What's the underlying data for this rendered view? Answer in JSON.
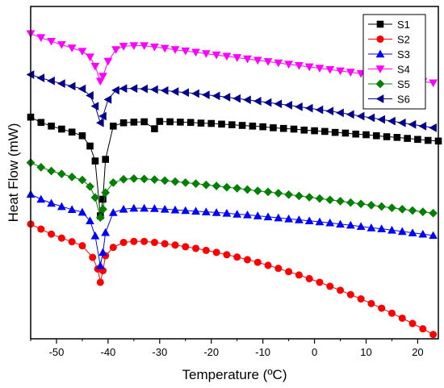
{
  "chart_data": {
    "type": "line",
    "xlabel": "Temperature (ºC)",
    "ylabel": "Heat Flow (mW)",
    "xlim": [
      -55,
      24
    ],
    "ylim": [
      0,
      100
    ],
    "x_ticks": [
      "-50",
      "-40",
      "-30",
      "-20",
      "-10",
      "0",
      "10",
      "20"
    ],
    "y_ticks_labeled": false,
    "grid": false,
    "legend_position": "top-right",
    "series": [
      {
        "name": "S1",
        "color": "#000000",
        "marker": "square",
        "points": [
          [
            -55,
            66.7
          ],
          [
            -53,
            65.1
          ],
          [
            -51,
            64.0
          ],
          [
            -49,
            63.1
          ],
          [
            -47,
            62.2
          ],
          [
            -45,
            61.1
          ],
          [
            -43.5,
            58.0
          ],
          [
            -42.5,
            53.5
          ],
          [
            -41.5,
            37.0
          ],
          [
            -41,
            42.0
          ],
          [
            -40.5,
            54.0
          ],
          [
            -39,
            64.0
          ],
          [
            -37,
            65.0
          ],
          [
            -35,
            65.2
          ],
          [
            -33,
            65.3
          ],
          [
            -31,
            63.2
          ],
          [
            -30,
            65.4
          ],
          [
            -28,
            65.3
          ],
          [
            -26,
            65.2
          ],
          [
            -24,
            65.1
          ],
          [
            -22,
            64.9
          ],
          [
            -20,
            64.8
          ],
          [
            -18,
            64.6
          ],
          [
            -16,
            64.4
          ],
          [
            -14,
            64.2
          ],
          [
            -12,
            64.0
          ],
          [
            -10,
            63.8
          ],
          [
            -8,
            63.5
          ],
          [
            -6,
            63.3
          ],
          [
            -4,
            63.1
          ],
          [
            -2,
            62.8
          ],
          [
            0,
            62.6
          ],
          [
            2,
            62.4
          ],
          [
            4,
            62.1
          ],
          [
            6,
            61.9
          ],
          [
            8,
            61.6
          ],
          [
            10,
            61.4
          ],
          [
            12,
            61.1
          ],
          [
            14,
            60.8
          ],
          [
            16,
            60.6
          ],
          [
            18,
            60.3
          ],
          [
            20,
            60.0
          ],
          [
            22,
            59.7
          ],
          [
            24,
            59.5
          ]
        ]
      },
      {
        "name": "S2",
        "color": "#ff0000",
        "marker": "circle",
        "points": [
          [
            -55,
            34.5
          ],
          [
            -53,
            33.0
          ],
          [
            -51,
            31.5
          ],
          [
            -49,
            30.3
          ],
          [
            -47,
            29.2
          ],
          [
            -45,
            28.0
          ],
          [
            -43,
            24.5
          ],
          [
            -42,
            21.0
          ],
          [
            -41.5,
            17.0
          ],
          [
            -41,
            20.5
          ],
          [
            -40.5,
            25.0
          ],
          [
            -39,
            27.5
          ],
          [
            -37,
            29.0
          ],
          [
            -35,
            29.3
          ],
          [
            -33,
            29.3
          ],
          [
            -31,
            29.0
          ],
          [
            -29,
            28.6
          ],
          [
            -27,
            28.2
          ],
          [
            -25,
            27.7
          ],
          [
            -23,
            27.2
          ],
          [
            -21,
            26.6
          ],
          [
            -19,
            26.0
          ],
          [
            -17,
            25.3
          ],
          [
            -15,
            24.6
          ],
          [
            -13,
            23.8
          ],
          [
            -11,
            23.0
          ],
          [
            -9,
            22.1
          ],
          [
            -7,
            21.2
          ],
          [
            -5,
            20.2
          ],
          [
            -3,
            19.2
          ],
          [
            -1,
            18.1
          ],
          [
            1,
            17.0
          ],
          [
            3,
            15.8
          ],
          [
            5,
            14.6
          ],
          [
            7,
            13.3
          ],
          [
            9,
            12.0
          ],
          [
            11,
            10.6
          ],
          [
            13,
            9.2
          ],
          [
            15,
            7.7
          ],
          [
            17,
            6.2
          ],
          [
            19,
            4.6
          ],
          [
            21,
            3.0
          ],
          [
            23,
            1.3
          ]
        ]
      },
      {
        "name": "S3",
        "color": "#0000ff",
        "marker": "triangle-up",
        "points": [
          [
            -55,
            43.5
          ],
          [
            -53,
            42.0
          ],
          [
            -51,
            40.8
          ],
          [
            -49,
            39.8
          ],
          [
            -47,
            38.9
          ],
          [
            -45,
            38.1
          ],
          [
            -43.5,
            35.5
          ],
          [
            -42.5,
            31.0
          ],
          [
            -41.5,
            22.0
          ],
          [
            -41,
            26.0
          ],
          [
            -40.5,
            32.0
          ],
          [
            -39,
            38.0
          ],
          [
            -37,
            39.0
          ],
          [
            -35,
            39.3
          ],
          [
            -33,
            39.3
          ],
          [
            -31,
            39.2
          ],
          [
            -29,
            39.0
          ],
          [
            -27,
            38.8
          ],
          [
            -25,
            38.6
          ],
          [
            -23,
            38.4
          ],
          [
            -21,
            38.2
          ],
          [
            -19,
            38.0
          ],
          [
            -17,
            37.8
          ],
          [
            -15,
            37.5
          ],
          [
            -13,
            37.3
          ],
          [
            -11,
            37.0
          ],
          [
            -9,
            36.7
          ],
          [
            -7,
            36.4
          ],
          [
            -5,
            36.1
          ],
          [
            -3,
            35.8
          ],
          [
            -1,
            35.5
          ],
          [
            1,
            35.2
          ],
          [
            3,
            34.9
          ],
          [
            5,
            34.5
          ],
          [
            7,
            34.2
          ],
          [
            9,
            33.8
          ],
          [
            11,
            33.4
          ],
          [
            13,
            33.1
          ],
          [
            15,
            32.7
          ],
          [
            17,
            32.3
          ],
          [
            19,
            31.9
          ],
          [
            21,
            31.5
          ],
          [
            23,
            31.1
          ]
        ]
      },
      {
        "name": "S4",
        "color": "#ff00ff",
        "marker": "triangle-down",
        "points": [
          [
            -55,
            91.8
          ],
          [
            -53,
            90.6
          ],
          [
            -51,
            89.5
          ],
          [
            -49,
            88.5
          ],
          [
            -47,
            87.5
          ],
          [
            -45,
            86.5
          ],
          [
            -43.5,
            84.8
          ],
          [
            -42.5,
            82.0
          ],
          [
            -41.5,
            77.5
          ],
          [
            -41,
            79.0
          ],
          [
            -40,
            83.5
          ],
          [
            -38.5,
            87.0
          ],
          [
            -37,
            88.0
          ],
          [
            -35,
            88.2
          ],
          [
            -33,
            88.2
          ],
          [
            -31,
            87.8
          ],
          [
            -29,
            87.4
          ],
          [
            -27,
            87.0
          ],
          [
            -25,
            86.6
          ],
          [
            -23,
            86.2
          ],
          [
            -21,
            85.8
          ],
          [
            -19,
            85.4
          ],
          [
            -17,
            85.0
          ],
          [
            -15,
            84.6
          ],
          [
            -13,
            84.2
          ],
          [
            -11,
            83.8
          ],
          [
            -9,
            83.4
          ],
          [
            -7,
            83.0
          ],
          [
            -5,
            82.6
          ],
          [
            -3,
            82.2
          ],
          [
            -1,
            81.8
          ],
          [
            1,
            81.4
          ],
          [
            3,
            81.0
          ],
          [
            5,
            80.6
          ],
          [
            7,
            80.2
          ],
          [
            9,
            79.8
          ],
          [
            11,
            79.4
          ],
          [
            13,
            79.0
          ],
          [
            15,
            78.6
          ],
          [
            17,
            78.2
          ],
          [
            19,
            77.8
          ],
          [
            21,
            77.4
          ],
          [
            23,
            77.0
          ]
        ]
      },
      {
        "name": "S5",
        "color": "#008000",
        "marker": "diamond",
        "points": [
          [
            -55,
            53.0
          ],
          [
            -53,
            51.6
          ],
          [
            -51,
            50.5
          ],
          [
            -49,
            49.6
          ],
          [
            -47,
            48.7
          ],
          [
            -45,
            47.8
          ],
          [
            -43.5,
            45.8
          ],
          [
            -42.5,
            42.5
          ],
          [
            -41.5,
            36.5
          ],
          [
            -41,
            39.0
          ],
          [
            -40.5,
            44.0
          ],
          [
            -39,
            47.0
          ],
          [
            -37,
            48.0
          ],
          [
            -35,
            48.2
          ],
          [
            -33,
            48.1
          ],
          [
            -31,
            47.9
          ],
          [
            -29,
            47.6
          ],
          [
            -27,
            47.3
          ],
          [
            -25,
            47.0
          ],
          [
            -23,
            46.7
          ],
          [
            -21,
            46.3
          ],
          [
            -19,
            46.0
          ],
          [
            -17,
            45.6
          ],
          [
            -15,
            45.3
          ],
          [
            -13,
            44.9
          ],
          [
            -11,
            44.5
          ],
          [
            -9,
            44.2
          ],
          [
            -7,
            43.8
          ],
          [
            -5,
            43.4
          ],
          [
            -3,
            43.0
          ],
          [
            -1,
            42.6
          ],
          [
            1,
            42.2
          ],
          [
            3,
            41.8
          ],
          [
            5,
            41.4
          ],
          [
            7,
            41.0
          ],
          [
            9,
            40.6
          ],
          [
            11,
            40.2
          ],
          [
            13,
            39.8
          ],
          [
            15,
            39.4
          ],
          [
            17,
            39.0
          ],
          [
            19,
            38.6
          ],
          [
            21,
            38.2
          ],
          [
            23,
            37.8
          ]
        ]
      },
      {
        "name": "S6",
        "color": "#00008b",
        "marker": "triangle-left",
        "points": [
          [
            -55,
            79.5
          ],
          [
            -53,
            78.5
          ],
          [
            -51,
            77.6
          ],
          [
            -49,
            76.8
          ],
          [
            -47,
            76.0
          ],
          [
            -45,
            75.2
          ],
          [
            -43.5,
            73.2
          ],
          [
            -42.5,
            70.0
          ],
          [
            -41.5,
            65.0
          ],
          [
            -41,
            67.0
          ],
          [
            -40,
            72.0
          ],
          [
            -38.5,
            74.8
          ],
          [
            -37,
            75.3
          ],
          [
            -35,
            75.3
          ],
          [
            -33,
            75.2
          ],
          [
            -31,
            75.0
          ],
          [
            -29,
            74.7
          ],
          [
            -27,
            74.4
          ],
          [
            -25,
            74.1
          ],
          [
            -23,
            73.8
          ],
          [
            -21,
            73.4
          ],
          [
            -19,
            73.1
          ],
          [
            -17,
            72.7
          ],
          [
            -15,
            72.3
          ],
          [
            -13,
            71.9
          ],
          [
            -11,
            71.5
          ],
          [
            -9,
            71.1
          ],
          [
            -7,
            70.7
          ],
          [
            -5,
            70.3
          ],
          [
            -3,
            69.8
          ],
          [
            -1,
            69.4
          ],
          [
            1,
            68.9
          ],
          [
            3,
            68.5
          ],
          [
            5,
            68.0
          ],
          [
            7,
            67.5
          ],
          [
            9,
            67.0
          ],
          [
            11,
            66.5
          ],
          [
            13,
            66.0
          ],
          [
            15,
            65.5
          ],
          [
            17,
            65.0
          ],
          [
            19,
            64.5
          ],
          [
            21,
            64.0
          ],
          [
            23,
            63.5
          ]
        ]
      }
    ]
  }
}
